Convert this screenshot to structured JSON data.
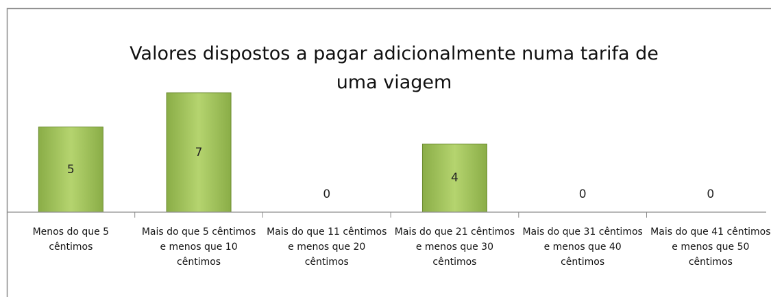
{
  "chart_data": {
    "type": "bar",
    "title": "Valores dispostos a pagar adicionalmente numa tarifa de uma viagem",
    "categories": [
      "Menos do que 5 cêntimos",
      "Mais do que 5 cêntimos e menos que 10 cêntimos",
      "Mais do que 11 cêntimos e menos que 20 cêntimos",
      "Mais do que 21 cêntimos e menos que 30 cêntimos",
      "Mais do que 31 cêntimos e menos que 40 cêntimos",
      "Mais do que 41 cêntimos e menos que 50 cêntimos"
    ],
    "values": [
      5,
      7,
      0,
      4,
      0,
      0
    ],
    "color": "#9bbb59",
    "ylim": [
      0,
      8
    ]
  }
}
